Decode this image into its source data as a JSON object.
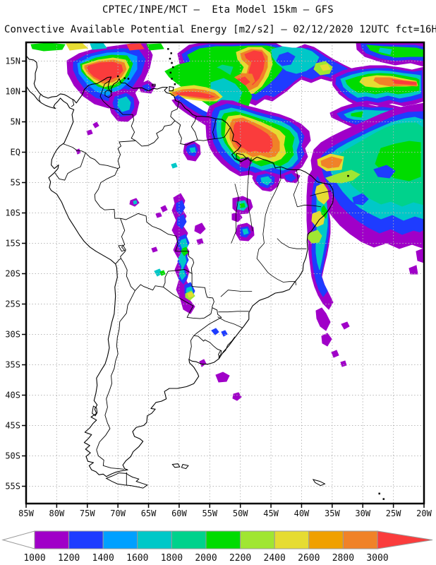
{
  "header": {
    "title": "CPTEC/INPE/MCT —  Eta Model 15km — GFS",
    "subtitle": "Convective Available Potential Energy [m2/s2] — 02/12/2020 12UTC fct=16H"
  },
  "map": {
    "lat_labels": [
      "15N",
      "10N",
      "5N",
      "EQ",
      "5S",
      "10S",
      "15S",
      "20S",
      "25S",
      "30S",
      "35S",
      "40S",
      "45S",
      "50S",
      "55S"
    ],
    "lon_labels": [
      "85W",
      "80W",
      "75W",
      "70W",
      "65W",
      "60W",
      "55W",
      "50W",
      "45W",
      "40W",
      "35W",
      "30W",
      "25W",
      "20W"
    ]
  },
  "colorbar": {
    "values": [
      "1000",
      "1200",
      "1400",
      "1600",
      "1800",
      "2000",
      "2200",
      "2400",
      "2600",
      "2800",
      "3000"
    ],
    "colors": [
      "#A000C8",
      "#1E3CFF",
      "#00A0FF",
      "#00C8C8",
      "#00D28C",
      "#00DC00",
      "#A0E632",
      "#E6DC32",
      "#F0A000",
      "#F08228"
    ],
    "above_color": "#FA3C3C",
    "below_color": "#FFFFFF",
    "outline_color": "#9a9a9a"
  },
  "chart_data": {
    "type": "heatmap",
    "title": "CPTEC/INPE/MCT —  Eta Model 15km — GFS",
    "subtitle": "Convective Available Potential Energy [m2/s2] — 02/12/2020 12UTC fct=16H",
    "units": "m2/s2",
    "legend_values": [
      1000,
      1200,
      1400,
      1600,
      1800,
      2000,
      2200,
      2400,
      2600,
      2800,
      3000
    ],
    "legend_colors": [
      "#A000C8",
      "#1E3CFF",
      "#00A0FF",
      "#00C8C8",
      "#00D28C",
      "#00DC00",
      "#A0E632",
      "#E6DC32",
      "#F0A000",
      "#F08228"
    ],
    "above_color": "#FA3C3C",
    "x_axis_ticks": [
      "85W",
      "80W",
      "75W",
      "70W",
      "65W",
      "60W",
      "55W",
      "50W",
      "45W",
      "40W",
      "35W",
      "30W",
      "25W",
      "20W"
    ],
    "y_axis_ticks": [
      "15N",
      "10N",
      "5N",
      "EQ",
      "5S",
      "10S",
      "15S",
      "20S",
      "25S",
      "30S",
      "35S",
      "40S",
      "45S",
      "50S",
      "55S"
    ],
    "grid": true,
    "legend_position": "bottom"
  }
}
